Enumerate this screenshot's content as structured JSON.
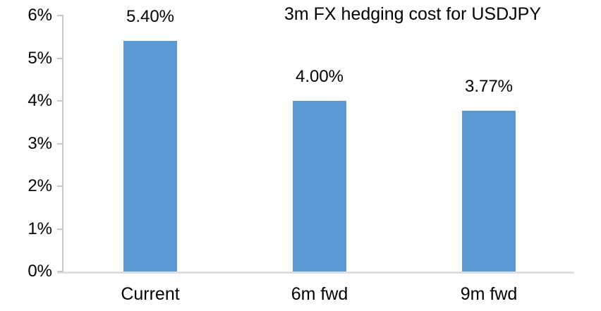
{
  "chart_data": {
    "type": "bar",
    "title": "3m FX hedging cost for USDJPY",
    "categories": [
      "Current",
      "6m fwd",
      "9m fwd"
    ],
    "values": [
      5.4,
      4.0,
      3.77
    ],
    "data_labels": [
      "5.40%",
      "4.00%",
      "3.77%"
    ],
    "xlabel": "",
    "ylabel": "",
    "ylim": [
      0,
      6
    ],
    "ytick_values": [
      0,
      1,
      2,
      3,
      4,
      5,
      6
    ],
    "ytick_labels": [
      "0%",
      "1%",
      "2%",
      "3%",
      "4%",
      "5%",
      "6%"
    ],
    "grid": "off",
    "legend": "none",
    "bar_color": "#5b9bd5",
    "axis_color": "#c8c8c8",
    "baseline_color": "#dedede",
    "text_color": "#000000"
  }
}
